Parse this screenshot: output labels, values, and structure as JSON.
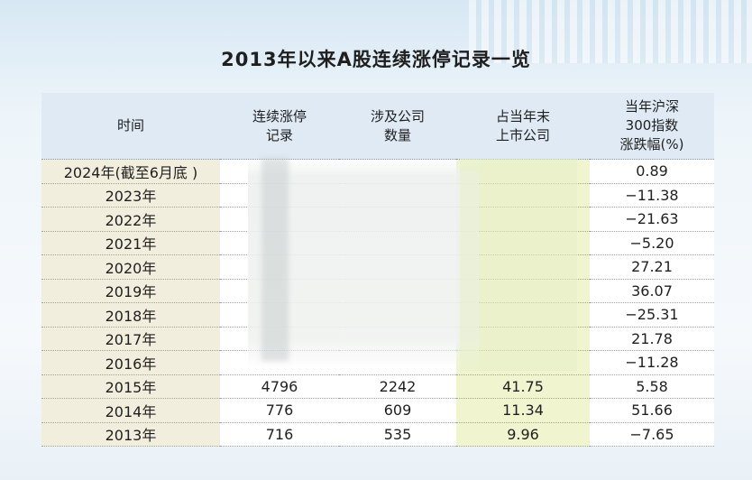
{
  "title": "2013年以来A股连续涨停记录一览",
  "headers": {
    "time": "时间",
    "streak_l1": "连续涨停",
    "streak_l2": "记录",
    "companies_l1": "涉及公司",
    "companies_l2": "数量",
    "share_l1": "占当年末",
    "share_l2": "上市公司",
    "index_l1": "当年沪深",
    "index_l2": "300指数",
    "index_l3": "涨跌幅(%)"
  },
  "rows": [
    {
      "year": "2024年(截至6月底 )",
      "streak": "",
      "companies": "",
      "share": "",
      "index": "0.89"
    },
    {
      "year": "2023年",
      "streak": "",
      "companies": "",
      "share": "",
      "index": "−11.38"
    },
    {
      "year": "2022年",
      "streak": "",
      "companies": "",
      "share": "",
      "index": "−21.63"
    },
    {
      "year": "2021年",
      "streak": "",
      "companies": "",
      "share": "",
      "index": "−5.20"
    },
    {
      "year": "2020年",
      "streak": "",
      "companies": "",
      "share": "",
      "index": "27.21"
    },
    {
      "year": "2019年",
      "streak": "",
      "companies": "",
      "share": "",
      "index": "36.07"
    },
    {
      "year": "2018年",
      "streak": "",
      "companies": "",
      "share": "",
      "index": "−25.31"
    },
    {
      "year": "2017年",
      "streak": "",
      "companies": "",
      "share": "",
      "index": "21.78"
    },
    {
      "year": "2016年",
      "streak": "",
      "companies": "",
      "share": "",
      "index": "−11.28"
    },
    {
      "year": "2015年",
      "streak": "4796",
      "companies": "2242",
      "share": "41.75",
      "index": "5.58"
    },
    {
      "year": "2014年",
      "streak": "776",
      "companies": "609",
      "share": "11.34",
      "index": "51.66"
    },
    {
      "year": "2013年",
      "streak": "716",
      "companies": "535",
      "share": "9.96",
      "index": "−7.65"
    }
  ]
}
